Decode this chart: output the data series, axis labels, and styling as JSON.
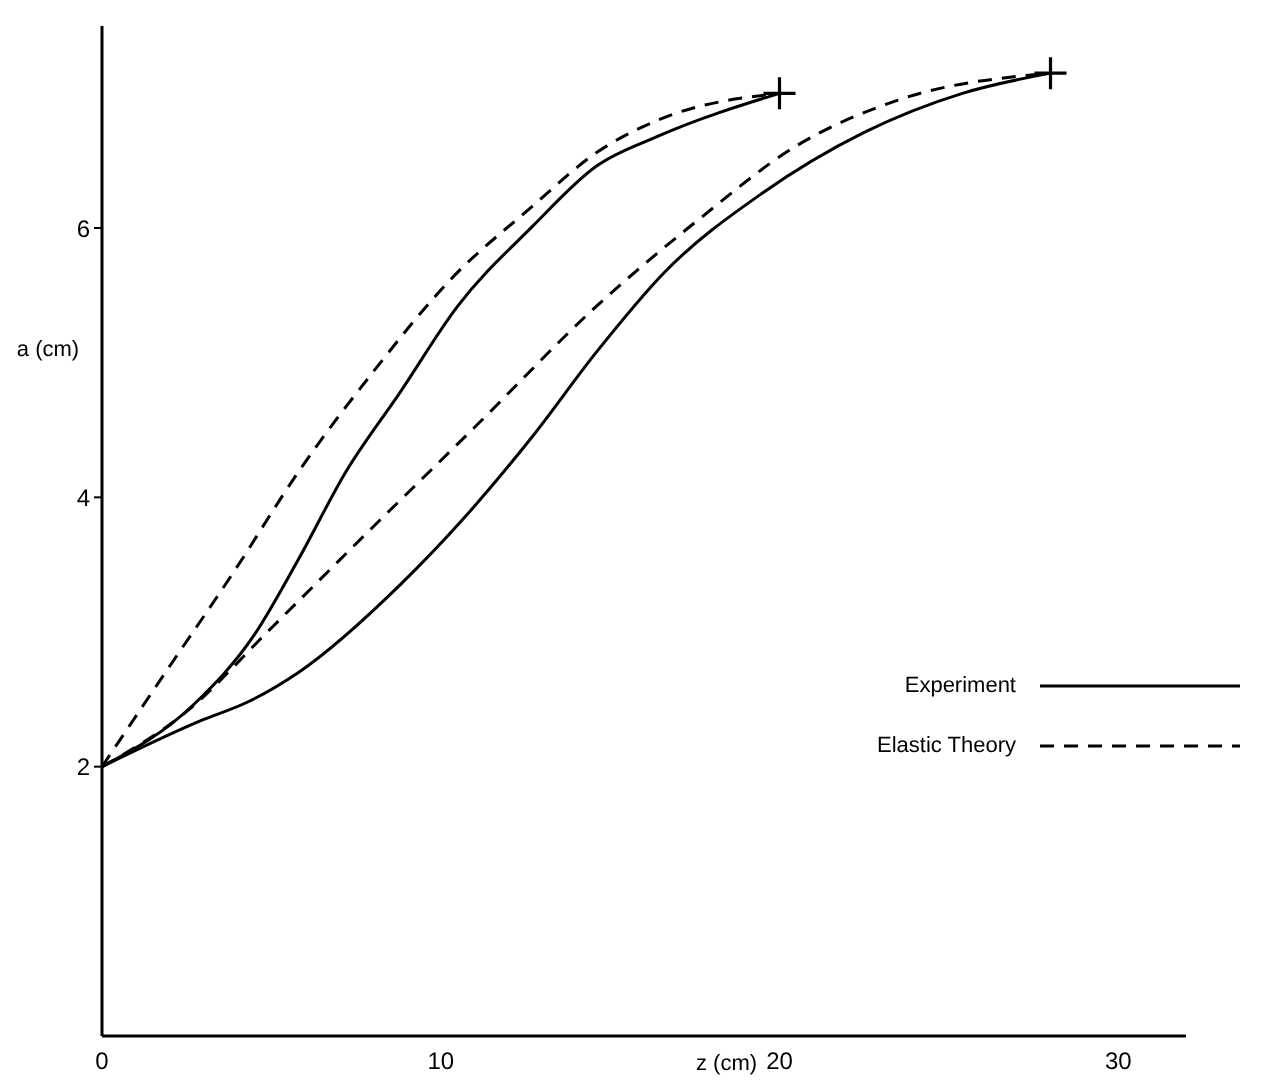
{
  "chart_data": {
    "type": "line",
    "xlabel": "z (cm)",
    "ylabel": "a (cm)",
    "xlim": [
      0,
      32
    ],
    "xticks": [
      0,
      10,
      20,
      30
    ],
    "ylim": [
      0,
      7.5
    ],
    "yticks": [
      2,
      4,
      6
    ],
    "grid": false,
    "legend": "bottom right",
    "marker": "none",
    "series": [
      {
        "name": "Experiment",
        "color": "#000000",
        "line_style": "solid",
        "x": [
          0,
          2.7,
          4.5,
          5.8,
          7.2,
          8.8,
          10.5,
          12.7,
          14.6,
          16.4,
          20
        ],
        "values": [
          2,
          2.46,
          2.98,
          3.54,
          4.19,
          4.78,
          5.42,
          6.01,
          6.46,
          6.68,
          7.0
        ]
      },
      {
        "name": "Elastic Theory",
        "color": "#000000",
        "line_style": "dashed",
        "x": [
          0,
          1.9,
          3.9,
          5.8,
          8.0,
          10.3,
          12.7,
          14.6,
          16.4,
          20
        ],
        "values": [
          2,
          2.71,
          3.45,
          4.19,
          4.93,
          5.62,
          6.16,
          6.56,
          6.8,
          7.0
        ]
      },
      {
        "color": "#000000",
        "line_style": "solid",
        "x": [
          0,
          2.9,
          4.3,
          5.8,
          8.8,
          10.7,
          12.7,
          14.6,
          16.6,
          19.5,
          22.5,
          25.4,
          28
        ],
        "values": [
          2,
          2.34,
          2.48,
          2.7,
          3.35,
          3.85,
          4.45,
          5.08,
          5.67,
          6.26,
          6.71,
          7.0,
          7.15
        ]
      },
      {
        "color": "#000000",
        "line_style": "dashed",
        "x": [
          0,
          2.5,
          5,
          8,
          11,
          14.6,
          17.6,
          20.5,
          23.5,
          28
        ],
        "values": [
          2,
          2.41,
          3.03,
          3.78,
          4.52,
          5.42,
          6.06,
          6.61,
          6.95,
          7.15
        ]
      },
      {
        "type": "scatter",
        "color": "#000000",
        "marker": "cross",
        "x": [
          20,
          28
        ],
        "values": [
          7.0,
          7.15
        ]
      }
    ]
  }
}
